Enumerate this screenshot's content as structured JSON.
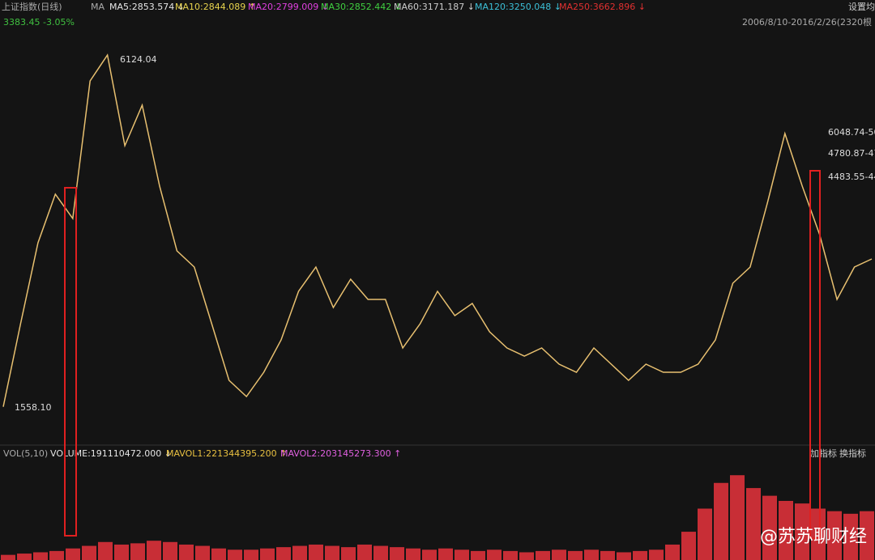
{
  "header": {
    "index_name": "上证指数(日线)",
    "ma_label": "MA",
    "ma": [
      "MA5:2853.574 ↓",
      "MA10:2844.089 ↑",
      "MA20:2799.009 ↓",
      "MA30:2852.442 ↓",
      "MA60:3171.187 ↓",
      "MA120:3250.048 ↓",
      "MA250:3662.896 ↓"
    ],
    "ma_colors": [
      "#e6e6e6",
      "#e8d44d",
      "#e040e0",
      "#40d040",
      "#cccccc",
      "#3cc0d8",
      "#e03030"
    ],
    "quote": "3383.45 -3.05%",
    "range": "2006/8/10-2016/2/26(2320根",
    "settings": "设置均"
  },
  "chart_data": [
    {
      "type": "line",
      "color": "#e8c070",
      "ylim": [
        1063,
        6418
      ],
      "values": [
        1560,
        2638,
        3688,
        4318,
        4003,
        5788,
        6124,
        4948,
        5473,
        4423,
        3583,
        3373,
        2638,
        1903,
        1693,
        2008,
        2428,
        3058,
        3373,
        2848,
        3215,
        2953,
        2953,
        2323,
        2638,
        3058,
        2743,
        2900,
        2533,
        2323,
        2218,
        2323,
        2113,
        2008,
        2323,
        2113,
        1903,
        2113,
        2008,
        2008,
        2113,
        2428,
        3163,
        3373,
        4213,
        5106,
        4423,
        3793,
        2953,
        3373,
        3478
      ],
      "annotations": [
        "6124.04",
        "1558.10",
        "6048.74-50",
        "4780.87-47",
        "4483.55-44"
      ]
    },
    {
      "type": "bar",
      "color": "#e8323c",
      "ylim": [
        0,
        400000000
      ],
      "header": [
        "VOL(5,10)",
        "VOLUME:191110472.000 ↓",
        "MAVOL1:221344395.200 ↑",
        "MAVOL2:203145273.300 ↑"
      ],
      "header_colors": [
        "#aaaaaa",
        "#e6e6e6",
        "#e8c040",
        "#e060e0"
      ],
      "buttons": [
        "加指标",
        "换指标"
      ],
      "values": [
        20000000,
        25000000,
        30000000,
        35000000,
        45000000,
        55000000,
        70000000,
        60000000,
        65000000,
        75000000,
        70000000,
        60000000,
        55000000,
        45000000,
        40000000,
        40000000,
        45000000,
        50000000,
        55000000,
        60000000,
        55000000,
        50000000,
        60000000,
        55000000,
        50000000,
        45000000,
        40000000,
        45000000,
        40000000,
        35000000,
        40000000,
        35000000,
        30000000,
        35000000,
        40000000,
        35000000,
        40000000,
        35000000,
        30000000,
        35000000,
        40000000,
        60000000,
        110000000,
        200000000,
        300000000,
        330000000,
        280000000,
        250000000,
        230000000,
        220000000,
        200000000,
        190000000,
        180000000,
        190000000
      ]
    }
  ],
  "watermark": "@苏苏聊财经"
}
